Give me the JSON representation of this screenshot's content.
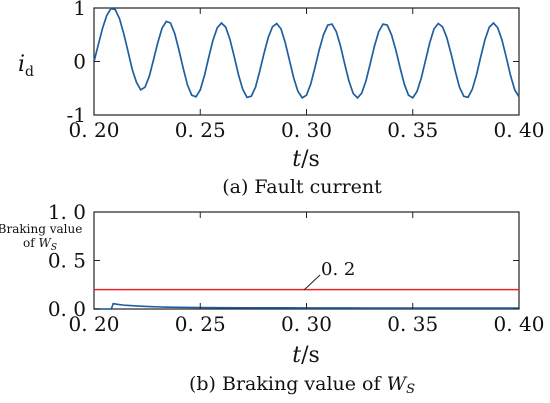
{
  "chart_data": [
    {
      "type": "line",
      "title": "",
      "caption": "(a) Fault current",
      "xlabel_italic": "t",
      "xlabel_unit": "/s",
      "ylabel_main": "i",
      "ylabel_sub": "d",
      "xlim": [
        0.2,
        0.4
      ],
      "ylim": [
        -1,
        1
      ],
      "x_ticks": [
        "0. 20",
        "0. 25",
        "0. 30",
        "0. 35",
        "0. 40"
      ],
      "x_tick_values": [
        0.2,
        0.25,
        0.3,
        0.35,
        0.4
      ],
      "y_ticks": [
        "1",
        "0",
        "-1"
      ],
      "y_tick_values": [
        1,
        0,
        -1
      ],
      "grid": false,
      "series": [
        {
          "color": "#1f5fa0",
          "x": [
            0.2,
            0.202,
            0.204,
            0.206,
            0.208,
            0.21,
            0.212,
            0.214,
            0.216,
            0.218,
            0.22,
            0.222,
            0.224,
            0.226,
            0.228,
            0.23,
            0.232,
            0.234,
            0.236,
            0.238,
            0.24,
            0.242,
            0.244,
            0.246,
            0.248,
            0.25,
            0.252,
            0.254,
            0.256,
            0.258,
            0.26,
            0.262,
            0.264,
            0.266,
            0.268,
            0.27,
            0.272,
            0.274,
            0.276,
            0.278,
            0.28,
            0.282,
            0.284,
            0.286,
            0.288,
            0.29,
            0.292,
            0.294,
            0.296,
            0.298,
            0.3,
            0.302,
            0.304,
            0.306,
            0.308,
            0.31,
            0.312,
            0.314,
            0.316,
            0.318,
            0.32,
            0.322,
            0.324,
            0.326,
            0.328,
            0.33,
            0.332,
            0.334,
            0.336,
            0.338,
            0.34,
            0.342,
            0.344,
            0.346,
            0.348,
            0.35,
            0.352,
            0.354,
            0.356,
            0.358,
            0.36,
            0.362,
            0.364,
            0.366,
            0.368,
            0.37,
            0.372,
            0.374,
            0.376,
            0.378,
            0.38,
            0.382,
            0.384,
            0.386,
            0.388,
            0.39,
            0.392,
            0.394,
            0.396,
            0.398,
            0.4
          ],
          "y": [
            0.0,
            0.31,
            0.62,
            0.86,
            0.99,
            0.97,
            0.8,
            0.52,
            0.19,
            -0.15,
            -0.39,
            -0.53,
            -0.48,
            -0.28,
            0.03,
            0.35,
            0.62,
            0.75,
            0.72,
            0.52,
            0.21,
            -0.13,
            -0.44,
            -0.63,
            -0.66,
            -0.53,
            -0.26,
            0.08,
            0.4,
            0.63,
            0.72,
            0.64,
            0.41,
            0.09,
            -0.25,
            -0.52,
            -0.67,
            -0.65,
            -0.48,
            -0.18,
            0.15,
            0.45,
            0.65,
            0.71,
            0.61,
            0.35,
            0.02,
            -0.31,
            -0.56,
            -0.68,
            -0.63,
            -0.42,
            -0.11,
            0.22,
            0.5,
            0.68,
            0.7,
            0.56,
            0.29,
            -0.05,
            -0.37,
            -0.6,
            -0.68,
            -0.59,
            -0.36,
            -0.04,
            0.29,
            0.56,
            0.7,
            0.68,
            0.5,
            0.22,
            -0.11,
            -0.42,
            -0.63,
            -0.68,
            -0.56,
            -0.31,
            0.02,
            0.35,
            0.61,
            0.71,
            0.65,
            0.45,
            0.15,
            -0.18,
            -0.48,
            -0.65,
            -0.67,
            -0.52,
            -0.25,
            0.09,
            0.41,
            0.64,
            0.72,
            0.63,
            0.4,
            0.08,
            -0.26,
            -0.53,
            -0.66
          ]
        }
      ]
    },
    {
      "type": "line",
      "title": "",
      "caption_prefix": "(b) Braking value of ",
      "caption_var": "W",
      "caption_sub": "S",
      "xlabel_italic": "t",
      "xlabel_unit": "/s",
      "ylabel_line1": "Braking value",
      "ylabel_line2_prefix": "of ",
      "ylabel_line2_var": "W",
      "ylabel_line2_sub": "S",
      "xlim": [
        0.2,
        0.4
      ],
      "ylim": [
        0,
        1.0
      ],
      "x_ticks": [
        "0. 20",
        "0. 25",
        "0. 30",
        "0. 35",
        "0. 40"
      ],
      "x_tick_values": [
        0.2,
        0.25,
        0.3,
        0.35,
        0.4
      ],
      "y_ticks": [
        "1. 0",
        "0. 5",
        "0. 0"
      ],
      "y_tick_values": [
        1.0,
        0.5,
        0.0
      ],
      "grid": false,
      "threshold": {
        "value": 0.2,
        "label": "0. 2",
        "color": "#e8262a"
      },
      "series": [
        {
          "color": "#1f5fa0",
          "x": [
            0.2,
            0.203,
            0.206,
            0.208,
            0.2085,
            0.209,
            0.211,
            0.214,
            0.218,
            0.222,
            0.226,
            0.23,
            0.235,
            0.24,
            0.25,
            0.26,
            0.27,
            0.28,
            0.29,
            0.3,
            0.31,
            0.32,
            0.33,
            0.34,
            0.35,
            0.36,
            0.37,
            0.38,
            0.39,
            0.4
          ],
          "y": [
            0.0,
            0.0,
            0.0,
            0.0,
            0.02,
            0.055,
            0.048,
            0.04,
            0.034,
            0.029,
            0.025,
            0.022,
            0.019,
            0.017,
            0.015,
            0.014,
            0.013,
            0.012,
            0.012,
            0.011,
            0.011,
            0.011,
            0.01,
            0.01,
            0.01,
            0.01,
            0.01,
            0.01,
            0.01,
            0.01
          ]
        }
      ]
    }
  ]
}
